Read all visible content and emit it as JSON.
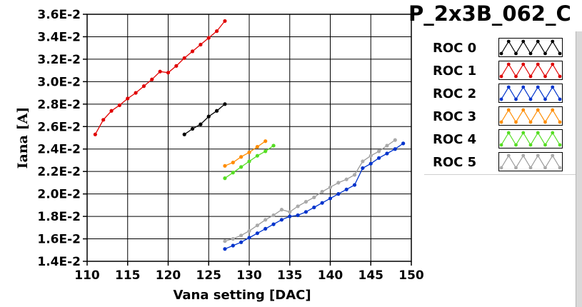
{
  "chart_data": {
    "type": "line",
    "title": "P_2x3B_062_C",
    "xlabel": "Vana setting [DAC]",
    "ylabel": "Iana [A]",
    "xlim": [
      110,
      150
    ],
    "ylim": [
      0.014,
      0.036
    ],
    "xticks": [
      110,
      115,
      120,
      125,
      130,
      135,
      140,
      145,
      150
    ],
    "yticks": [
      0.014,
      0.016,
      0.018,
      0.02,
      0.022,
      0.024,
      0.026,
      0.028,
      0.03,
      0.032,
      0.034,
      0.036
    ],
    "ytick_labels": [
      "1.4E-2",
      "1.6E-2",
      "1.8E-2",
      "2.0E-2",
      "2.2E-2",
      "2.4E-2",
      "2.6E-2",
      "2.8E-2",
      "3.0E-2",
      "3.2E-2",
      "3.4E-2",
      "3.6E-2"
    ],
    "grid": true,
    "legend_position": "right",
    "series": [
      {
        "name": "ROC 0",
        "color": "#000000",
        "line_color": "#000000",
        "x": [
          122,
          123,
          124,
          125,
          126,
          127
        ],
        "y": [
          0.0253,
          0.0258,
          0.0262,
          0.0269,
          0.0274,
          0.028
        ]
      },
      {
        "name": "ROC 1",
        "color": "#e00000",
        "line_color": "#e00000",
        "x": [
          111,
          112,
          113,
          114,
          115,
          116,
          117,
          118,
          119,
          120,
          121,
          122,
          123,
          124,
          125,
          126,
          127
        ],
        "y": [
          0.0253,
          0.0266,
          0.0274,
          0.0279,
          0.0285,
          0.029,
          0.0296,
          0.0302,
          0.0309,
          0.0308,
          0.0314,
          0.0321,
          0.0327,
          0.0333,
          0.0339,
          0.0345,
          0.0354
        ]
      },
      {
        "name": "ROC 2",
        "color": "#0033cc",
        "line_color": "#0033cc",
        "x": [
          127,
          128,
          129,
          130,
          131,
          132,
          133,
          134,
          135,
          136,
          137,
          138,
          139,
          140,
          141,
          142,
          143,
          144,
          145,
          146,
          147,
          148,
          149
        ],
        "y": [
          0.0151,
          0.0154,
          0.0157,
          0.0161,
          0.0165,
          0.0169,
          0.0173,
          0.0177,
          0.018,
          0.0181,
          0.0184,
          0.0188,
          0.0192,
          0.0196,
          0.02,
          0.0204,
          0.0208,
          0.0223,
          0.0227,
          0.0232,
          0.0236,
          0.024,
          0.0245
        ]
      },
      {
        "name": "ROC 3",
        "color": "#ff8c00",
        "line_color": "#ff8c00",
        "x": [
          127,
          128,
          129,
          130,
          131,
          132
        ],
        "y": [
          0.0225,
          0.0228,
          0.0233,
          0.0237,
          0.0242,
          0.0247
        ]
      },
      {
        "name": "ROC 4",
        "color": "#55dd22",
        "line_color": "#55dd22",
        "x": [
          127,
          128,
          129,
          130,
          131,
          132,
          133
        ],
        "y": [
          0.0214,
          0.0219,
          0.0224,
          0.0229,
          0.0234,
          0.0238,
          0.0243
        ]
      },
      {
        "name": "ROC 5",
        "color": "#aaaaaa",
        "line_color": "#999999",
        "x": [
          127,
          128,
          129,
          130,
          131,
          132,
          133,
          134,
          135,
          136,
          137,
          138,
          139,
          140,
          141,
          142,
          143,
          144,
          145,
          146,
          147,
          148
        ],
        "y": [
          0.0158,
          0.016,
          0.0163,
          0.0167,
          0.0172,
          0.0177,
          0.0181,
          0.0186,
          0.0184,
          0.0189,
          0.0193,
          0.0197,
          0.0202,
          0.0206,
          0.021,
          0.0213,
          0.0217,
          0.0229,
          0.0234,
          0.0238,
          0.0243,
          0.0248
        ]
      }
    ]
  }
}
